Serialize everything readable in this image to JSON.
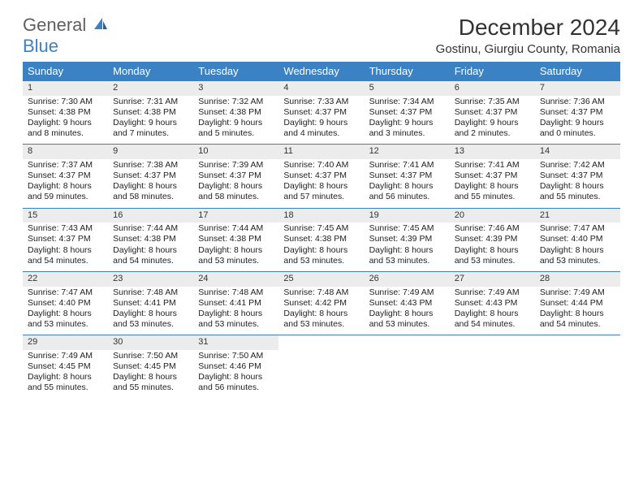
{
  "brand": {
    "line1": "General",
    "line2": "Blue"
  },
  "title": "December 2024",
  "location": "Gostinu, Giurgiu County, Romania",
  "colors": {
    "header_bg": "#3b82c4",
    "header_text": "#ffffff",
    "daynum_bg": "#ececec",
    "border": "#3b82c4",
    "body_text": "#222222",
    "title_text": "#333333",
    "page_bg": "#ffffff"
  },
  "fonts": {
    "title_size": 28,
    "location_size": 15,
    "dayhdr_size": 13,
    "cell_size": 10.5
  },
  "day_headers": [
    "Sunday",
    "Monday",
    "Tuesday",
    "Wednesday",
    "Thursday",
    "Friday",
    "Saturday"
  ],
  "weeks": [
    [
      {
        "n": "1",
        "sunrise": "Sunrise: 7:30 AM",
        "sunset": "Sunset: 4:38 PM",
        "daylight": "Daylight: 9 hours and 8 minutes."
      },
      {
        "n": "2",
        "sunrise": "Sunrise: 7:31 AM",
        "sunset": "Sunset: 4:38 PM",
        "daylight": "Daylight: 9 hours and 7 minutes."
      },
      {
        "n": "3",
        "sunrise": "Sunrise: 7:32 AM",
        "sunset": "Sunset: 4:38 PM",
        "daylight": "Daylight: 9 hours and 5 minutes."
      },
      {
        "n": "4",
        "sunrise": "Sunrise: 7:33 AM",
        "sunset": "Sunset: 4:37 PM",
        "daylight": "Daylight: 9 hours and 4 minutes."
      },
      {
        "n": "5",
        "sunrise": "Sunrise: 7:34 AM",
        "sunset": "Sunset: 4:37 PM",
        "daylight": "Daylight: 9 hours and 3 minutes."
      },
      {
        "n": "6",
        "sunrise": "Sunrise: 7:35 AM",
        "sunset": "Sunset: 4:37 PM",
        "daylight": "Daylight: 9 hours and 2 minutes."
      },
      {
        "n": "7",
        "sunrise": "Sunrise: 7:36 AM",
        "sunset": "Sunset: 4:37 PM",
        "daylight": "Daylight: 9 hours and 0 minutes."
      }
    ],
    [
      {
        "n": "8",
        "sunrise": "Sunrise: 7:37 AM",
        "sunset": "Sunset: 4:37 PM",
        "daylight": "Daylight: 8 hours and 59 minutes."
      },
      {
        "n": "9",
        "sunrise": "Sunrise: 7:38 AM",
        "sunset": "Sunset: 4:37 PM",
        "daylight": "Daylight: 8 hours and 58 minutes."
      },
      {
        "n": "10",
        "sunrise": "Sunrise: 7:39 AM",
        "sunset": "Sunset: 4:37 PM",
        "daylight": "Daylight: 8 hours and 58 minutes."
      },
      {
        "n": "11",
        "sunrise": "Sunrise: 7:40 AM",
        "sunset": "Sunset: 4:37 PM",
        "daylight": "Daylight: 8 hours and 57 minutes."
      },
      {
        "n": "12",
        "sunrise": "Sunrise: 7:41 AM",
        "sunset": "Sunset: 4:37 PM",
        "daylight": "Daylight: 8 hours and 56 minutes."
      },
      {
        "n": "13",
        "sunrise": "Sunrise: 7:41 AM",
        "sunset": "Sunset: 4:37 PM",
        "daylight": "Daylight: 8 hours and 55 minutes."
      },
      {
        "n": "14",
        "sunrise": "Sunrise: 7:42 AM",
        "sunset": "Sunset: 4:37 PM",
        "daylight": "Daylight: 8 hours and 55 minutes."
      }
    ],
    [
      {
        "n": "15",
        "sunrise": "Sunrise: 7:43 AM",
        "sunset": "Sunset: 4:37 PM",
        "daylight": "Daylight: 8 hours and 54 minutes."
      },
      {
        "n": "16",
        "sunrise": "Sunrise: 7:44 AM",
        "sunset": "Sunset: 4:38 PM",
        "daylight": "Daylight: 8 hours and 54 minutes."
      },
      {
        "n": "17",
        "sunrise": "Sunrise: 7:44 AM",
        "sunset": "Sunset: 4:38 PM",
        "daylight": "Daylight: 8 hours and 53 minutes."
      },
      {
        "n": "18",
        "sunrise": "Sunrise: 7:45 AM",
        "sunset": "Sunset: 4:38 PM",
        "daylight": "Daylight: 8 hours and 53 minutes."
      },
      {
        "n": "19",
        "sunrise": "Sunrise: 7:45 AM",
        "sunset": "Sunset: 4:39 PM",
        "daylight": "Daylight: 8 hours and 53 minutes."
      },
      {
        "n": "20",
        "sunrise": "Sunrise: 7:46 AM",
        "sunset": "Sunset: 4:39 PM",
        "daylight": "Daylight: 8 hours and 53 minutes."
      },
      {
        "n": "21",
        "sunrise": "Sunrise: 7:47 AM",
        "sunset": "Sunset: 4:40 PM",
        "daylight": "Daylight: 8 hours and 53 minutes."
      }
    ],
    [
      {
        "n": "22",
        "sunrise": "Sunrise: 7:47 AM",
        "sunset": "Sunset: 4:40 PM",
        "daylight": "Daylight: 8 hours and 53 minutes."
      },
      {
        "n": "23",
        "sunrise": "Sunrise: 7:48 AM",
        "sunset": "Sunset: 4:41 PM",
        "daylight": "Daylight: 8 hours and 53 minutes."
      },
      {
        "n": "24",
        "sunrise": "Sunrise: 7:48 AM",
        "sunset": "Sunset: 4:41 PM",
        "daylight": "Daylight: 8 hours and 53 minutes."
      },
      {
        "n": "25",
        "sunrise": "Sunrise: 7:48 AM",
        "sunset": "Sunset: 4:42 PM",
        "daylight": "Daylight: 8 hours and 53 minutes."
      },
      {
        "n": "26",
        "sunrise": "Sunrise: 7:49 AM",
        "sunset": "Sunset: 4:43 PM",
        "daylight": "Daylight: 8 hours and 53 minutes."
      },
      {
        "n": "27",
        "sunrise": "Sunrise: 7:49 AM",
        "sunset": "Sunset: 4:43 PM",
        "daylight": "Daylight: 8 hours and 54 minutes."
      },
      {
        "n": "28",
        "sunrise": "Sunrise: 7:49 AM",
        "sunset": "Sunset: 4:44 PM",
        "daylight": "Daylight: 8 hours and 54 minutes."
      }
    ],
    [
      {
        "n": "29",
        "sunrise": "Sunrise: 7:49 AM",
        "sunset": "Sunset: 4:45 PM",
        "daylight": "Daylight: 8 hours and 55 minutes."
      },
      {
        "n": "30",
        "sunrise": "Sunrise: 7:50 AM",
        "sunset": "Sunset: 4:45 PM",
        "daylight": "Daylight: 8 hours and 55 minutes."
      },
      {
        "n": "31",
        "sunrise": "Sunrise: 7:50 AM",
        "sunset": "Sunset: 4:46 PM",
        "daylight": "Daylight: 8 hours and 56 minutes."
      },
      null,
      null,
      null,
      null
    ]
  ]
}
